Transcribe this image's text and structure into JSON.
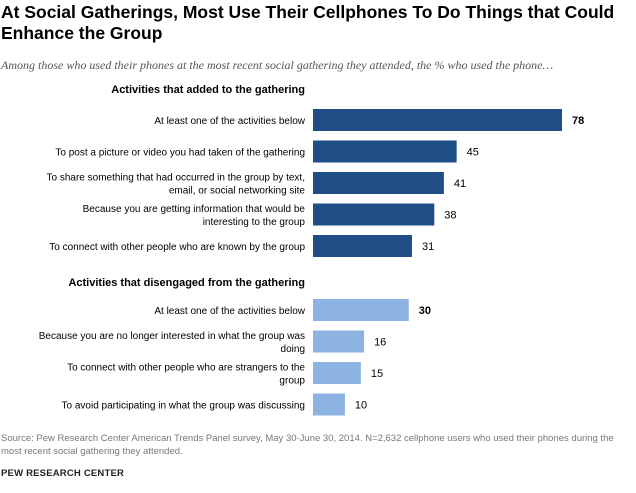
{
  "title": "At Social Gatherings, Most Use Their Cellphones To Do Things that Could Enhance the Group",
  "subtitle": "Among those who used their phones at the most recent social gathering they attended, the % who used the phone…",
  "source": "Source:  Pew Research Center American Trends Panel survey, May 30-June 30, 2014. N=2,632 cellphone users who used their phones during the most recent social gathering they attended.",
  "brand": "PEW RESEARCH CENTER",
  "colors": {
    "dark": "#1f4e86",
    "light": "#8db3e2",
    "text": "#000000"
  },
  "chart_data": {
    "type": "bar",
    "orientation": "horizontal",
    "title": "At Social Gatherings, Most Use Their Cellphones To Do Things that Could Enhance the Group",
    "xlabel": "",
    "ylabel": "",
    "xlim": [
      0,
      100
    ],
    "grid": false,
    "groups": [
      {
        "heading": "Activities that added to the gathering",
        "color": "#1f4e86",
        "bars": [
          {
            "label": [
              "At least one of the activities below"
            ],
            "value": 78,
            "bold": true
          },
          {
            "label": [
              "To post a picture or video you had taken of the gathering"
            ],
            "value": 45
          },
          {
            "label": [
              "To share something that had occurred in the group by text,",
              "email, or social networking site"
            ],
            "value": 41
          },
          {
            "label": [
              "Because you are getting information that would be",
              "interesting to the group"
            ],
            "value": 38
          },
          {
            "label": [
              "To connect with other people who are known by the group"
            ],
            "value": 31
          }
        ]
      },
      {
        "heading": "Activities that disengaged from the gathering",
        "color": "#8db3e2",
        "bars": [
          {
            "label": [
              "At least one of the activities below"
            ],
            "value": 30,
            "bold": true
          },
          {
            "label": [
              "Because you are no longer interested in what the group was",
              "doing"
            ],
            "value": 16
          },
          {
            "label": [
              "To connect with other people who are strangers to the",
              "group"
            ],
            "value": 15
          },
          {
            "label": [
              "To avoid participating in what the group was discussing"
            ],
            "value": 10
          }
        ]
      }
    ]
  }
}
